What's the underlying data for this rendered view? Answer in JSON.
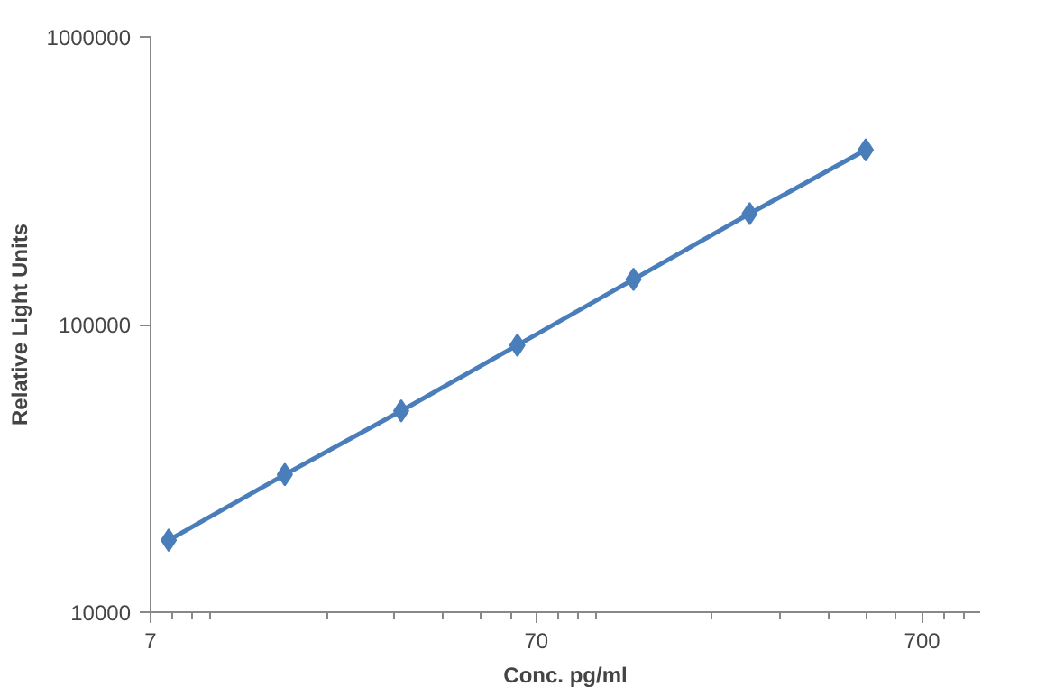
{
  "chart_data": {
    "type": "line",
    "xlabel": "Conc. pg/ml",
    "ylabel": "Relative Light Units",
    "x": [
      7.8,
      15.6,
      31.25,
      62.5,
      125,
      250,
      500
    ],
    "series": [
      {
        "color": "#4a7ebb",
        "values": [
          17800,
          30100,
          50100,
          84800,
          143600,
          243000,
          405000
        ]
      }
    ],
    "log": "xy",
    "xlim": [
      7,
      990
    ],
    "ylim": [
      10000,
      1000000
    ],
    "xticks": [
      7,
      70,
      700
    ],
    "yticks": [
      10000,
      100000,
      1000000
    ],
    "marker": "diamond",
    "line_style": "solid",
    "grid": false
  }
}
